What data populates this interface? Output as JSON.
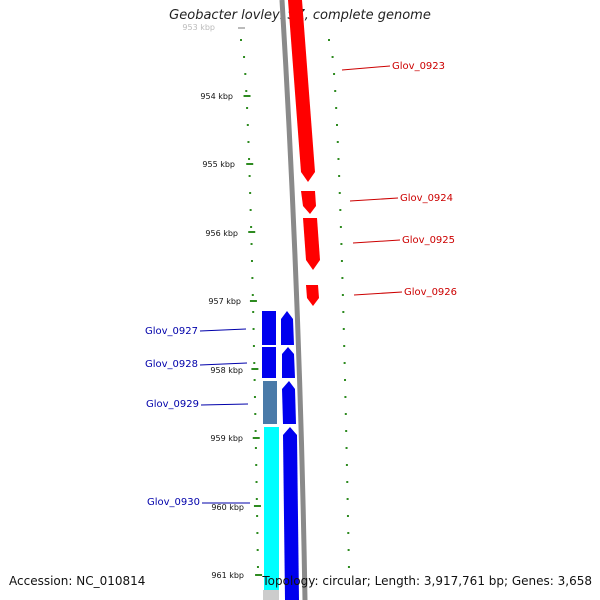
{
  "title": "Geobacter lovleyi SZ, complete genome",
  "footer": {
    "accession": "Accession: NC_010814",
    "summary": "Topology: circular; Length: 3,917,761 bp; Genes: 3,658"
  },
  "colors": {
    "forward_strand": "#ff0000",
    "reverse_strand": "#0000ee",
    "reverse_strand_alt": "#4a7aa8",
    "reverse_strand_cyan": "#00ffff",
    "backbone": "#8a8a8a",
    "ticks": "#2e8b20",
    "forward_label": "#cc0000",
    "reverse_label": "#0000aa"
  },
  "scale": {
    "labels": [
      "953 kbp",
      "954 kbp",
      "955 kbp",
      "956 kbp",
      "957 kbp",
      "958 kbp",
      "959 kbp",
      "960 kbp",
      "961 kbp"
    ]
  },
  "genes": {
    "forward": [
      {
        "label": "Glov_0923"
      },
      {
        "label": "Glov_0924"
      },
      {
        "label": "Glov_0925"
      },
      {
        "label": "Glov_0926"
      }
    ],
    "reverse": [
      {
        "label": "Glov_0927"
      },
      {
        "label": "Glov_0928"
      },
      {
        "label": "Glov_0929"
      },
      {
        "label": "Glov_0930"
      }
    ]
  }
}
